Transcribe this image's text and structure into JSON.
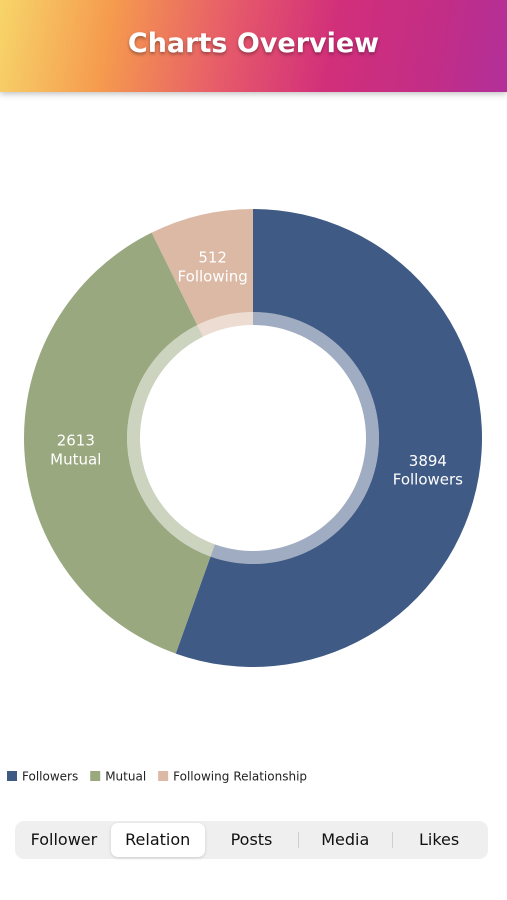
{
  "header": {
    "title": "Charts Overview"
  },
  "chart_data": {
    "type": "donut",
    "categories": [
      "Followers",
      "Mutual",
      "Following"
    ],
    "values": [
      3894,
      2613,
      512
    ],
    "colors": [
      "#3f5a84",
      "#99a87f",
      "#dbb9a4"
    ],
    "legend_title": "Relationship"
  },
  "tabs": {
    "items": [
      "Follower",
      "Relation",
      "Posts",
      "Media",
      "Likes"
    ],
    "selected": 1
  }
}
